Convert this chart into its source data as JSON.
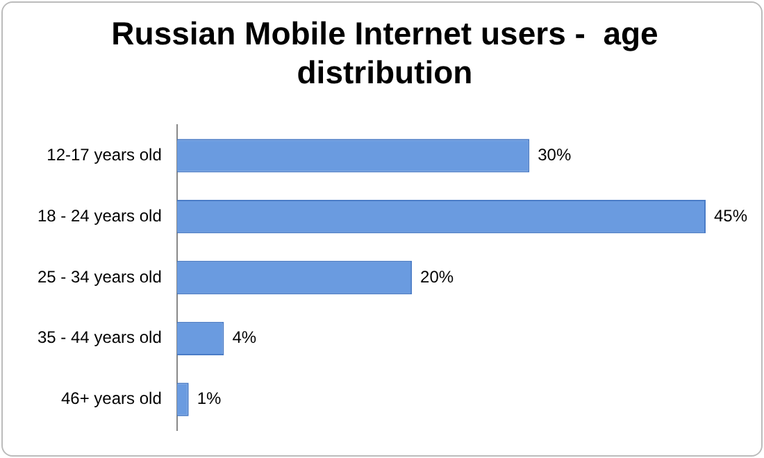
{
  "chart_data": {
    "type": "bar",
    "orientation": "horizontal",
    "title": "Russian Mobile Internet users -  age distribution",
    "categories": [
      "12-17 years old",
      "18 - 24 years old",
      "25 - 34 years old",
      "35 - 44 years old",
      "46+ years old"
    ],
    "values": [
      30,
      45,
      20,
      4,
      1
    ],
    "value_labels": [
      "30%",
      "45%",
      "20%",
      "4%",
      "1%"
    ],
    "color": "#6a9be0"
  }
}
